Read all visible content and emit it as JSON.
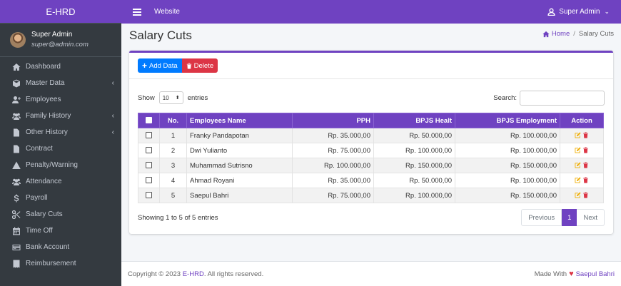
{
  "brand": "E-HRD",
  "user": {
    "name": "Super Admin",
    "email": "super@admin.com"
  },
  "sidebar": {
    "items": [
      {
        "label": "Dashboard",
        "icon": "home-icon",
        "has_arrow": false
      },
      {
        "label": "Master Data",
        "icon": "cube-icon",
        "has_arrow": true
      },
      {
        "label": "Employees",
        "icon": "user-plus-icon",
        "has_arrow": false
      },
      {
        "label": "Family History",
        "icon": "users-icon",
        "has_arrow": true
      },
      {
        "label": "Other History",
        "icon": "file-icon",
        "has_arrow": true
      },
      {
        "label": "Contract",
        "icon": "file-icon",
        "has_arrow": false
      },
      {
        "label": "Penalty/Warning",
        "icon": "warning-icon",
        "has_arrow": false
      },
      {
        "label": "Attendance",
        "icon": "users-icon",
        "has_arrow": false
      },
      {
        "label": "Payroll",
        "icon": "dollar-icon",
        "has_arrow": false
      },
      {
        "label": "Salary Cuts",
        "icon": "scissors-icon",
        "has_arrow": false
      },
      {
        "label": "Time Off",
        "icon": "calendar-icon",
        "has_arrow": false
      },
      {
        "label": "Bank Account",
        "icon": "credit-card-icon",
        "has_arrow": false
      },
      {
        "label": "Reimbursement",
        "icon": "receipt-icon",
        "has_arrow": false
      }
    ],
    "arrow": "‹"
  },
  "topbar": {
    "website_label": "Website",
    "user_label": "Super Admin",
    "caret": "⌄"
  },
  "page": {
    "title": "Salary Cuts"
  },
  "breadcrumb": {
    "home": "Home",
    "separator": "/",
    "current": "Salary Cuts"
  },
  "toolbar": {
    "add_label": "Add Data",
    "delete_label": "Delete",
    "add_prefix": "+"
  },
  "controls": {
    "show_label": "Show",
    "entries_value": "10",
    "entries_label": "entries",
    "search_label": "Search:",
    "search_value": ""
  },
  "table": {
    "headers": {
      "no": "No.",
      "name": "Employees Name",
      "pph": "PPH",
      "bpjs": "BPJS Healt",
      "employment": "BPJS Employment",
      "action": "Action"
    },
    "rows": [
      {
        "no": "1",
        "name": "Franky Pandapotan",
        "pph": "Rp. 35.000,00",
        "bpjs": "Rp. 50.000,00",
        "employment": "Rp. 100.000,00"
      },
      {
        "no": "2",
        "name": "Dwi Yulianto",
        "pph": "Rp. 75.000,00",
        "bpjs": "Rp. 100.000,00",
        "employment": "Rp. 100.000,00"
      },
      {
        "no": "3",
        "name": "Muhammad Sutrisno",
        "pph": "Rp. 100.000,00",
        "bpjs": "Rp. 150.000,00",
        "employment": "Rp. 150.000,00"
      },
      {
        "no": "4",
        "name": "Ahmad Royani",
        "pph": "Rp. 35.000,00",
        "bpjs": "Rp. 50.000,00",
        "employment": "Rp. 100.000,00"
      },
      {
        "no": "5",
        "name": "Saepul Bahri",
        "pph": "Rp. 75.000,00",
        "bpjs": "Rp. 100.000,00",
        "employment": "Rp. 150.000,00"
      }
    ]
  },
  "pagination": {
    "info": "Showing 1 to 5 of 5 entries",
    "previous": "Previous",
    "current": "1",
    "next": "Next"
  },
  "footer": {
    "copyright_prefix": "Copyright © 2023",
    "brand": "E-HRD",
    "copyright_suffix": ". All rights reserved.",
    "made_with": "Made With",
    "author": "Saepul Bahri"
  },
  "colors": {
    "primary": "#6f42c1",
    "sidebar_bg": "#343a40",
    "add_button": "#007bff",
    "delete_button": "#dc3545",
    "edit_icon": "#f0ad00",
    "delete_icon": "#dc3545"
  }
}
